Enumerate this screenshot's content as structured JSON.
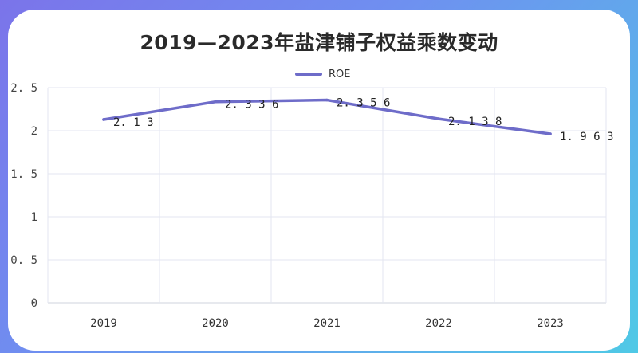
{
  "chart_data": {
    "type": "line",
    "title": "2019—2023年盐津铺子权益乘数变动",
    "categories": [
      "2019",
      "2020",
      "2021",
      "2022",
      "2023"
    ],
    "series": [
      {
        "name": "ROE",
        "values": [
          2.13,
          2.336,
          2.356,
          2.138,
          1.963
        ],
        "labels": [
          "2.13",
          "2.336",
          "2.356",
          "2.138",
          "1.963"
        ]
      }
    ],
    "y_ticks": [
      "0",
      "0.5",
      "1",
      "1.5",
      "2",
      "2.5"
    ],
    "ylim": [
      0,
      2.5
    ],
    "grid": true,
    "legend": "top-center",
    "colors": {
      "line": "#6e6cc9",
      "grid": "#e3e6f0",
      "axis": "#cfd3de"
    }
  }
}
